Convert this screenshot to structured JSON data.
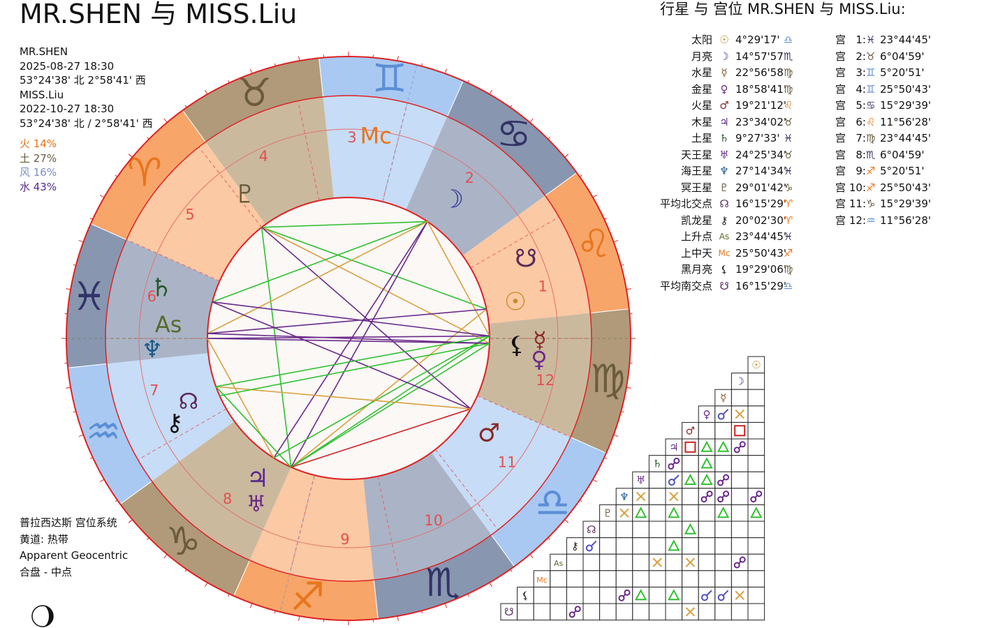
{
  "title": "MR.SHEN 与 MISS.Liu",
  "info": [
    "MR.SHEN",
    "2025-08-27 18:30",
    "53°24'38' 北 2°58'41' 西",
    "MISS.Liu",
    "2022-10-27 18:30",
    "53°24'38' 北 / 2°58'41' 西"
  ],
  "elements": [
    {
      "label": "火 14%",
      "color": "#e8751a"
    },
    {
      "label": "土 27%",
      "color": "#6b5b3e"
    },
    {
      "label": "风 16%",
      "color": "#7b8fc8"
    },
    {
      "label": "水 43%",
      "color": "#5a2a8a"
    }
  ],
  "footer": [
    "普拉西达斯 宫位系统",
    "黄道: 热带",
    "Apparent Geocentric",
    "合盘 - 中点"
  ],
  "table_heading": "行星 与 宫位 MR.SHEN 与 MISS.Liu:",
  "planets": [
    {
      "name": "太阳",
      "sym": "☉",
      "pos": "4°29'17'",
      "sign": "♎",
      "color": "#c88a2a",
      "signColor": "#5b8ed6"
    },
    {
      "name": "月亮",
      "sym": "☽",
      "pos": "14°57'57",
      "sign": "♏",
      "color": "#333399",
      "signColor": "#333366"
    },
    {
      "name": "水星",
      "sym": "☿",
      "pos": "22°56'58",
      "sign": "♍",
      "color": "#8a5a2a",
      "signColor": "#6b5b3e"
    },
    {
      "name": "金星",
      "sym": "♀",
      "pos": "18°58'41'",
      "sign": "♍",
      "color": "#6a2a8a",
      "signColor": "#6b5b3e"
    },
    {
      "name": "火星",
      "sym": "♂",
      "pos": "19°21'12'",
      "sign": "♌",
      "color": "#8a2a2a",
      "signColor": "#e8751a"
    },
    {
      "name": "木星",
      "sym": "♃",
      "pos": "23°34'02'",
      "sign": "♉",
      "color": "#5a2a8a",
      "signColor": "#6b5b3e"
    },
    {
      "name": "土星",
      "sym": "♄",
      "pos": "9°27'33'",
      "sign": "♓",
      "color": "#2a5a2a",
      "signColor": "#333366"
    },
    {
      "name": "天王星",
      "sym": "♅",
      "pos": "24°25'34'",
      "sign": "♉",
      "color": "#6a2a8a",
      "signColor": "#6b5b3e"
    },
    {
      "name": "海王星",
      "sym": "♆",
      "pos": "27°14'34'",
      "sign": "♓",
      "color": "#1a5a8a",
      "signColor": "#333366"
    },
    {
      "name": "冥王星",
      "sym": "♇",
      "pos": "29°01'42'",
      "sign": "♑",
      "color": "#6b5b3e",
      "signColor": "#6b5b3e"
    },
    {
      "name": "平均北交点",
      "sym": "☊",
      "pos": "16°15'29'",
      "sign": "♈",
      "color": "#5a2a5a",
      "signColor": "#e8751a"
    },
    {
      "name": "凯龙星",
      "sym": "⚷",
      "pos": "20°02'30'",
      "sign": "♈",
      "color": "#222",
      "signColor": "#e8751a"
    },
    {
      "name": "上升点",
      "sym": "As",
      "pos": "23°44'45'",
      "sign": "♓",
      "color": "#5a6a2a",
      "signColor": "#333366"
    },
    {
      "name": "上中天",
      "sym": "Mc",
      "pos": "25°50'43'",
      "sign": "♐",
      "color": "#e8751a",
      "signColor": "#e8751a"
    },
    {
      "name": "黑月亮",
      "sym": "⚸",
      "pos": "19°29'06'",
      "sign": "♍",
      "color": "#222",
      "signColor": "#6b5b3e"
    },
    {
      "name": "平均南交点",
      "sym": "☋",
      "pos": "16°15'29'",
      "sign": "♎",
      "color": "#5a2a5a",
      "signColor": "#5b8ed6"
    }
  ],
  "houses": [
    {
      "label": "宫",
      "num": "1:",
      "sign": "♓",
      "pos": "23°44'45'",
      "signColor": "#333366"
    },
    {
      "label": "宫",
      "num": "2:",
      "sign": "♉",
      "pos": "6°04'59'",
      "signColor": "#6b5b3e"
    },
    {
      "label": "宫",
      "num": "3:",
      "sign": "♊",
      "pos": "5°20'51'",
      "signColor": "#5b8ed6"
    },
    {
      "label": "宫",
      "num": "4:",
      "sign": "♊",
      "pos": "25°50'43'",
      "signColor": "#5b8ed6"
    },
    {
      "label": "宫",
      "num": "5:",
      "sign": "♋",
      "pos": "15°29'39'",
      "signColor": "#333366"
    },
    {
      "label": "宫",
      "num": "6:",
      "sign": "♌",
      "pos": "11°56'28'",
      "signColor": "#e8751a"
    },
    {
      "label": "宫",
      "num": "7:",
      "sign": "♍",
      "pos": "23°44'45'",
      "signColor": "#6b5b3e"
    },
    {
      "label": "宫",
      "num": "8:",
      "sign": "♏",
      "pos": "6°04'59'",
      "signColor": "#333366"
    },
    {
      "label": "宫",
      "num": "9:",
      "sign": "♐",
      "pos": "5°20'51'",
      "signColor": "#e8751a"
    },
    {
      "label": "宫",
      "num": "10:",
      "sign": "♐",
      "pos": "25°50'43'",
      "signColor": "#e8751a"
    },
    {
      "label": "宫",
      "num": "11:",
      "sign": "♑",
      "pos": "15°29'39'",
      "signColor": "#6b5b3e"
    },
    {
      "label": "宫",
      "num": "12:",
      "sign": "♒",
      "pos": "11°56'28'",
      "signColor": "#5b8ed6"
    }
  ],
  "wheel": {
    "signs": [
      {
        "sym": "♓",
        "color": "#333366"
      },
      {
        "sym": "♈",
        "color": "#e8751a"
      },
      {
        "sym": "♉",
        "color": "#6b5b3e"
      },
      {
        "sym": "♊",
        "color": "#5b8ed6"
      },
      {
        "sym": "♋",
        "color": "#333366"
      },
      {
        "sym": "♌",
        "color": "#e8751a"
      },
      {
        "sym": "♍",
        "color": "#6b5b3e"
      },
      {
        "sym": "♎",
        "color": "#5b8ed6"
      },
      {
        "sym": "♏",
        "color": "#333366"
      },
      {
        "sym": "♐",
        "color": "#e8751a"
      },
      {
        "sym": "♑",
        "color": "#6b5b3e"
      },
      {
        "sym": "♒",
        "color": "#5b8ed6"
      }
    ],
    "house_numbers": [
      "1",
      "2",
      "3",
      "4",
      "5",
      "6",
      "7",
      "8",
      "9",
      "10",
      "11",
      "12"
    ],
    "angles": {
      "asc": "As",
      "mc": "Mc"
    },
    "planets_in_wheel": [
      {
        "sym": "♇",
        "color": "#6b5b3e"
      },
      {
        "sym": "☽",
        "color": "#333399"
      },
      {
        "sym": "☋",
        "color": "#5a2a5a"
      },
      {
        "sym": "☉",
        "color": "#c88a2a"
      },
      {
        "sym": "☿",
        "color": "#8a2a2a"
      },
      {
        "sym": "⚸",
        "color": "#111"
      },
      {
        "sym": "♀",
        "color": "#6a2a8a"
      },
      {
        "sym": "♂",
        "color": "#8a2a2a"
      },
      {
        "sym": "♃",
        "color": "#5a2a8a"
      },
      {
        "sym": "♅",
        "color": "#6a2a8a"
      },
      {
        "sym": "☊",
        "color": "#5a2a5a"
      },
      {
        "sym": "⚷",
        "color": "#111"
      },
      {
        "sym": "♆",
        "color": "#1a5a8a"
      },
      {
        "sym": "♄",
        "color": "#2a5a2a"
      }
    ]
  },
  "aspect_grid": {
    "row_labels": [
      {
        "sym": "☉",
        "color": "#c88a2a"
      },
      {
        "sym": "☽",
        "color": "#333399"
      },
      {
        "sym": "☿",
        "color": "#8a5a2a"
      },
      {
        "sym": "♀",
        "color": "#6a2a8a"
      },
      {
        "sym": "♂",
        "color": "#8a2a2a"
      },
      {
        "sym": "♃",
        "color": "#5a2a8a"
      },
      {
        "sym": "♄",
        "color": "#2a5a2a"
      },
      {
        "sym": "♅",
        "color": "#6a2a8a"
      },
      {
        "sym": "♆",
        "color": "#1a5a8a"
      },
      {
        "sym": "♇",
        "color": "#6b5b3e"
      },
      {
        "sym": "☊",
        "color": "#5a2a5a"
      },
      {
        "sym": "⚷",
        "color": "#222"
      },
      {
        "sym": "As",
        "color": "#5a6a2a"
      },
      {
        "sym": "Mc",
        "color": "#e8751a"
      },
      {
        "sym": "⚸",
        "color": "#222"
      },
      {
        "sym": "☋",
        "color": "#5a2a5a"
      }
    ],
    "aspect_colors": {
      "conj": "#d8a040",
      "sext": "#5050c0",
      "square": "#d02020",
      "trine": "#30c030",
      "opp": "#6a2a8a"
    }
  }
}
